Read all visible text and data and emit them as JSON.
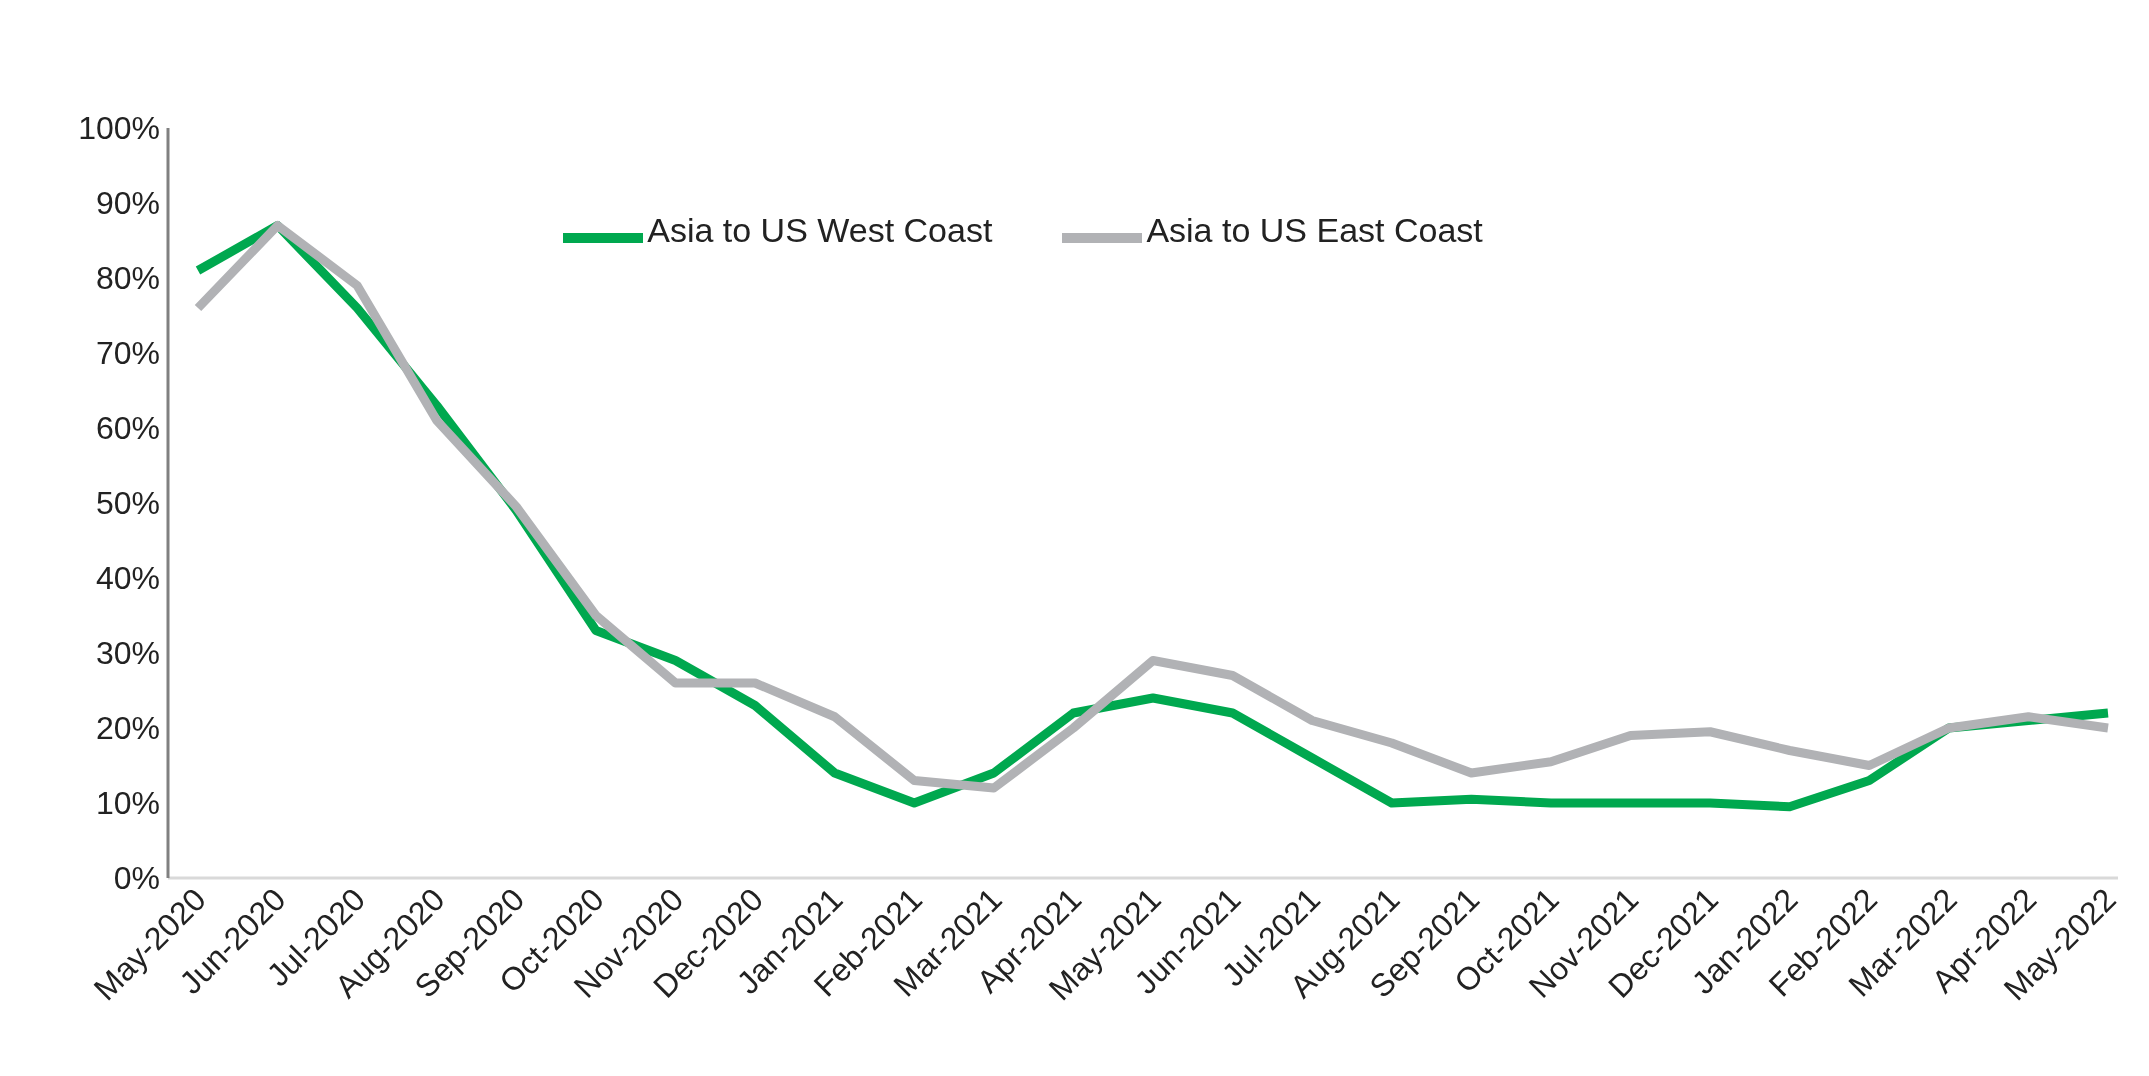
{
  "chart_data": {
    "type": "line",
    "categories": [
      "May-2020",
      "Jun-2020",
      "Jul-2020",
      "Aug-2020",
      "Sep-2020",
      "Oct-2020",
      "Nov-2020",
      "Dec-2020",
      "Jan-2021",
      "Feb-2021",
      "Mar-2021",
      "Apr-2021",
      "May-2021",
      "Jun-2021",
      "Jul-2021",
      "Aug-2021",
      "Sep-2021",
      "Oct-2021",
      "Nov-2021",
      "Dec-2021",
      "Jan-2022",
      "Feb-2022",
      "Mar-2022",
      "Apr-2022",
      "May-2022"
    ],
    "series": [
      {
        "name": "Asia to US West Coast",
        "color": "#00a84f",
        "values": [
          81,
          87,
          76,
          63,
          49,
          33,
          29,
          23,
          14,
          10,
          14,
          22,
          24,
          22,
          16,
          10,
          10.5,
          10,
          10,
          10,
          9.5,
          13,
          20,
          21,
          22
        ]
      },
      {
        "name": "Asia to US East Coast",
        "color": "#b1b2b5",
        "values": [
          76,
          87,
          79,
          61,
          49.5,
          35,
          26,
          26,
          21.5,
          13,
          12,
          20,
          29,
          27,
          21,
          18,
          14,
          15.5,
          19,
          19.5,
          17,
          15,
          20,
          21.5,
          20
        ]
      }
    ],
    "ylim": [
      0,
      100
    ],
    "yticks": [
      {
        "value": 0,
        "label": "0%"
      },
      {
        "value": 10,
        "label": "10%"
      },
      {
        "value": 20,
        "label": "20%"
      },
      {
        "value": 30,
        "label": "30%"
      },
      {
        "value": 40,
        "label": "40%"
      },
      {
        "value": 50,
        "label": "50%"
      },
      {
        "value": 60,
        "label": "60%"
      },
      {
        "value": 70,
        "label": "70%"
      },
      {
        "value": 80,
        "label": "80%"
      },
      {
        "value": 90,
        "label": "90%"
      },
      {
        "value": 100,
        "label": "100%"
      }
    ],
    "grid": false,
    "legend": "top",
    "marker": "none",
    "line_style": "solid"
  }
}
